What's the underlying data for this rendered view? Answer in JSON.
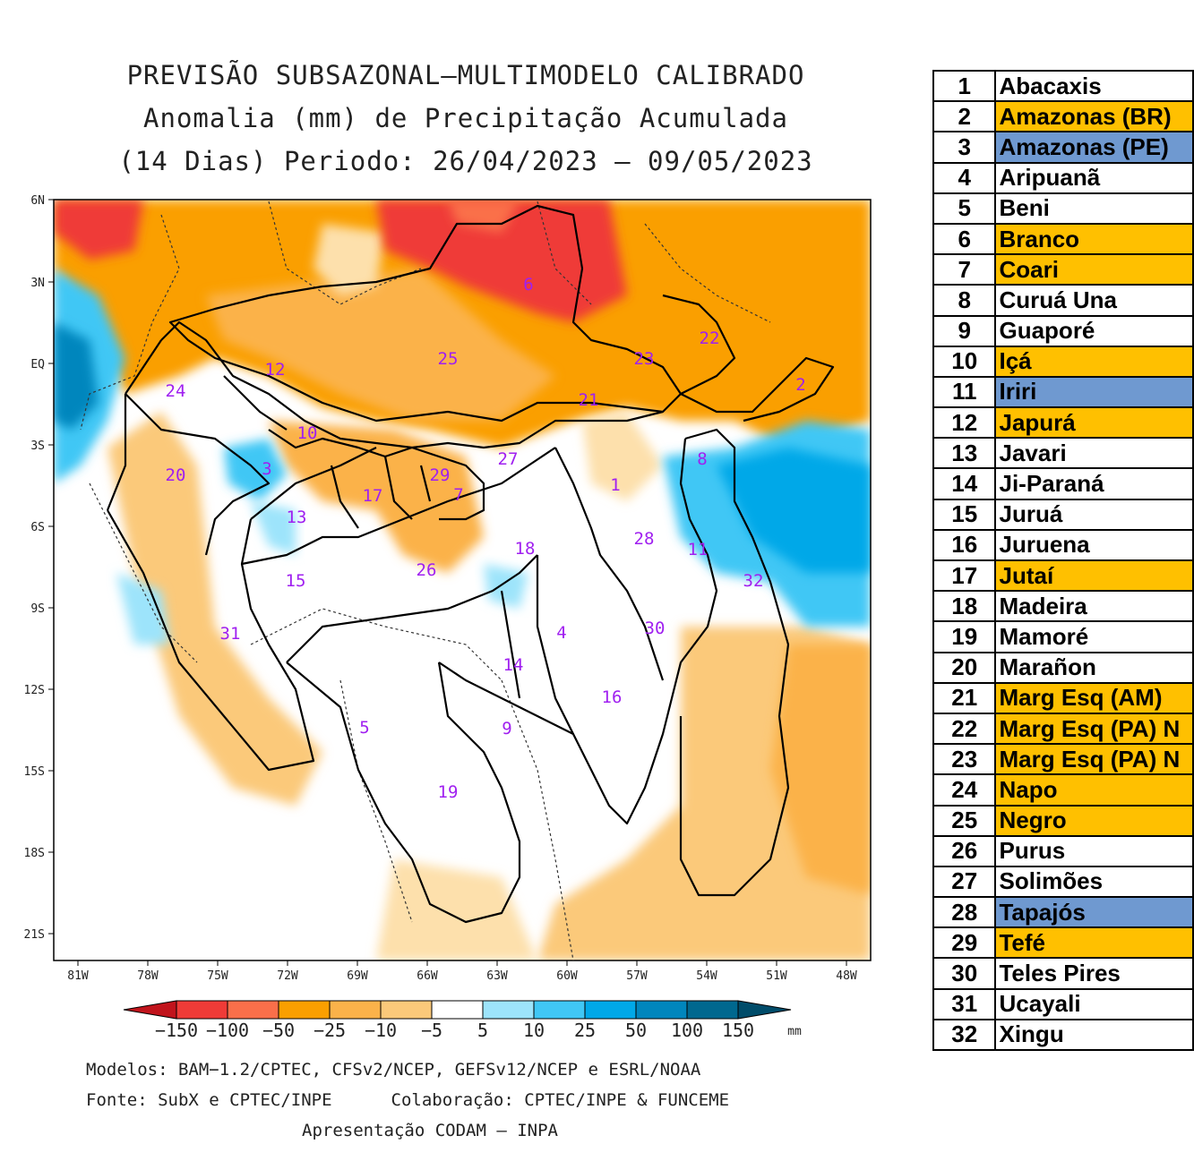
{
  "title_lines": [
    "PREVISÃO SUBSAZONAL—MULTIMODELO CALIBRADO",
    "Anomalia (mm) de Precipitação Acumulada",
    "(14 Dias) Periodo: 26/04/2023 — 09/05/2023"
  ],
  "map": {
    "lat_labels": [
      "6N",
      "3N",
      "EQ",
      "3S",
      "6S",
      "9S",
      "12S",
      "15S",
      "18S",
      "21S"
    ],
    "lon_labels": [
      "81W",
      "78W",
      "75W",
      "72W",
      "69W",
      "66W",
      "63W",
      "60W",
      "57W",
      "54W",
      "51W",
      "48W"
    ],
    "basin_label_numbers": [
      "1",
      "2",
      "3",
      "4",
      "5",
      "6",
      "7",
      "8",
      "9",
      "10",
      "11",
      "12",
      "13",
      "14",
      "15",
      "16",
      "17",
      "18",
      "19",
      "20",
      "21",
      "22",
      "23",
      "24",
      "25",
      "26",
      "27",
      "28",
      "29",
      "30",
      "31",
      "32"
    ]
  },
  "legend": {
    "ticks": [
      "−150",
      "−100",
      "−50",
      "−25",
      "−10",
      "−5",
      "5",
      "10",
      "25",
      "50",
      "100",
      "150"
    ],
    "unit": "mm",
    "colors": [
      "#c1141c",
      "#ef3b37",
      "#fa6f4a",
      "#fa9f00",
      "#fbb24a",
      "#fbc97a",
      "#fde0ac",
      "#ffffff",
      "#9de4fb",
      "#40c7f5",
      "#00a8e8",
      "#0086bd",
      "#00688f",
      "#004c6a"
    ]
  },
  "credits": {
    "models": "Modelos: BAM−1.2/CPTEC, CFSv2/NCEP, GEFSv12/NCEP e ESRL/NOAA",
    "source": "Fonte: SubX e CPTEC/INPE",
    "collab": "Colaboração: CPTEC/INPE & FUNCEME",
    "presentation": "Apresentação CODAM — INPA"
  },
  "basins": [
    {
      "num": "1",
      "name": "Abacaxis",
      "color": "#ffffff"
    },
    {
      "num": "2",
      "name": "Amazonas (BR)",
      "color": "#ffc000"
    },
    {
      "num": "3",
      "name": "Amazonas (PE)",
      "color": "#6f99d0"
    },
    {
      "num": "4",
      "name": "Aripuanã",
      "color": "#ffffff"
    },
    {
      "num": "5",
      "name": "Beni",
      "color": "#ffffff"
    },
    {
      "num": "6",
      "name": "Branco",
      "color": "#ffc000"
    },
    {
      "num": "7",
      "name": "Coari",
      "color": "#ffc000"
    },
    {
      "num": "8",
      "name": "Curuá Una",
      "color": "#ffffff"
    },
    {
      "num": "9",
      "name": "Guaporé",
      "color": "#ffffff"
    },
    {
      "num": "10",
      "name": "Içá",
      "color": "#ffc000"
    },
    {
      "num": "11",
      "name": "Iriri",
      "color": "#6f99d0"
    },
    {
      "num": "12",
      "name": "Japurá",
      "color": "#ffc000"
    },
    {
      "num": "13",
      "name": "Javari",
      "color": "#ffffff"
    },
    {
      "num": "14",
      "name": "Ji-Paraná",
      "color": "#ffffff"
    },
    {
      "num": "15",
      "name": "Juruá",
      "color": "#ffffff"
    },
    {
      "num": "16",
      "name": "Juruena",
      "color": "#ffffff"
    },
    {
      "num": "17",
      "name": "Jutaí",
      "color": "#ffc000"
    },
    {
      "num": "18",
      "name": "Madeira",
      "color": "#ffffff"
    },
    {
      "num": "19",
      "name": "Mamoré",
      "color": "#ffffff"
    },
    {
      "num": "20",
      "name": "Marañon",
      "color": "#ffffff"
    },
    {
      "num": "21",
      "name": "Marg Esq (AM)",
      "color": "#ffc000"
    },
    {
      "num": "22",
      "name": "Marg Esq (PA) N",
      "color": "#ffc000"
    },
    {
      "num": "23",
      "name": "Marg Esq (PA) N",
      "color": "#ffc000"
    },
    {
      "num": "24",
      "name": "Napo",
      "color": "#ffc000"
    },
    {
      "num": "25",
      "name": "Negro",
      "color": "#ffc000"
    },
    {
      "num": "26",
      "name": "Purus",
      "color": "#ffffff"
    },
    {
      "num": "27",
      "name": "Solimões",
      "color": "#ffffff"
    },
    {
      "num": "28",
      "name": "Tapajós",
      "color": "#6f99d0"
    },
    {
      "num": "29",
      "name": "Tefé",
      "color": "#ffc000"
    },
    {
      "num": "30",
      "name": "Teles Pires",
      "color": "#ffffff"
    },
    {
      "num": "31",
      "name": "Ucayali",
      "color": "#ffffff"
    },
    {
      "num": "32",
      "name": "Xingu",
      "color": "#ffffff"
    }
  ]
}
